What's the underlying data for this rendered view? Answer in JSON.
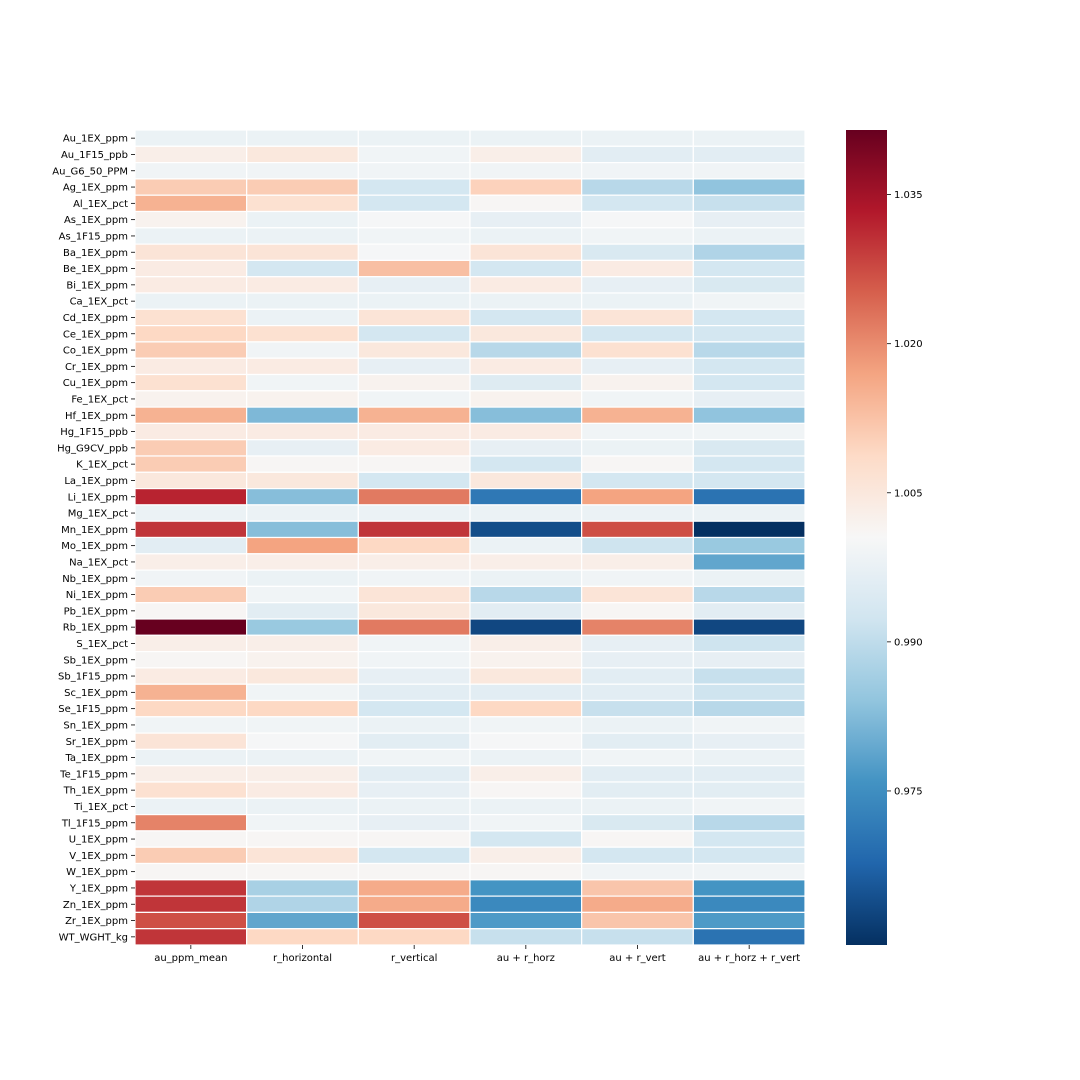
{
  "chart_data": {
    "type": "heatmap",
    "title": "",
    "xlabel": "",
    "ylabel": "",
    "colormap": "RdBu_r",
    "colors": {
      "low": "#053061",
      "mid": "#f7f7f7",
      "high": "#67001f",
      "grid_line": "#ffffff"
    },
    "vmin": 0.9595,
    "vmax": 1.0415,
    "columns": [
      "au_ppm_mean",
      "r_horizontal",
      "r_vertical",
      "au + r_horz",
      "au + r_vert",
      "au + r_horz + r_vert"
    ],
    "rows": [
      "Au_1EX_ppm",
      "Au_1F15_ppb",
      "Au_G6_50_PPM",
      "Ag_1EX_ppm",
      "Al_1EX_pct",
      "As_1EX_ppm",
      "As_1F15_ppm",
      "Ba_1EX_ppm",
      "Be_1EX_ppm",
      "Bi_1EX_ppm",
      "Ca_1EX_pct",
      "Cd_1EX_ppm",
      "Ce_1EX_ppm",
      "Co_1EX_ppm",
      "Cr_1EX_ppm",
      "Cu_1EX_ppm",
      "Fe_1EX_pct",
      "Hf_1EX_ppm",
      "Hg_1F15_ppb",
      "Hg_G9CV_ppb",
      "K_1EX_pct",
      "La_1EX_ppm",
      "Li_1EX_ppm",
      "Mg_1EX_pct",
      "Mn_1EX_ppm",
      "Mo_1EX_ppm",
      "Na_1EX_pct",
      "Nb_1EX_ppm",
      "Ni_1EX_ppm",
      "Pb_1EX_ppm",
      "Rb_1EX_ppm",
      "S_1EX_pct",
      "Sb_1EX_ppm",
      "Sb_1F15_ppm",
      "Sc_1EX_ppm",
      "Se_1F15_ppm",
      "Sn_1EX_ppm",
      "Sr_1EX_ppm",
      "Ta_1EX_ppm",
      "Te_1F15_ppm",
      "Th_1EX_ppm",
      "Ti_1EX_pct",
      "Tl_1F15_ppm",
      "U_1EX_ppm",
      "V_1EX_ppm",
      "W_1EX_ppm",
      "Y_1EX_ppm",
      "Zn_1EX_ppm",
      "Zr_1EX_ppm",
      "WT_WGHT_kg"
    ],
    "values": [
      [
        0.998,
        0.998,
        0.998,
        0.998,
        0.998,
        0.998
      ],
      [
        1.003,
        1.005,
        0.999,
        1.003,
        0.996,
        0.996
      ],
      [
        0.999,
        0.999,
        0.999,
        0.999,
        0.999,
        0.999
      ],
      [
        1.011,
        1.011,
        0.993,
        1.01,
        0.989,
        0.984
      ],
      [
        1.015,
        1.007,
        0.993,
        1.001,
        0.993,
        0.991
      ],
      [
        1.002,
        0.998,
        1.0,
        0.997,
        1.0,
        0.997
      ],
      [
        0.998,
        0.998,
        0.999,
        0.998,
        0.999,
        0.998
      ],
      [
        1.006,
        1.006,
        1.0,
        1.006,
        0.994,
        0.988
      ],
      [
        1.004,
        0.993,
        1.013,
        0.993,
        1.004,
        0.993
      ],
      [
        1.004,
        1.004,
        0.997,
        1.004,
        0.997,
        0.994
      ],
      [
        0.998,
        0.998,
        0.998,
        0.998,
        0.998,
        0.999
      ],
      [
        1.007,
        0.998,
        1.006,
        0.993,
        1.006,
        0.993
      ],
      [
        1.009,
        1.007,
        0.993,
        1.005,
        0.993,
        0.993
      ],
      [
        1.011,
        0.999,
        1.005,
        0.989,
        1.007,
        0.989
      ],
      [
        1.004,
        1.004,
        0.997,
        1.004,
        0.997,
        0.993
      ],
      [
        1.007,
        0.999,
        1.002,
        0.995,
        1.002,
        0.993
      ],
      [
        1.002,
        1.002,
        0.999,
        1.002,
        0.999,
        0.997
      ],
      [
        1.015,
        0.982,
        1.015,
        0.983,
        1.015,
        0.984
      ],
      [
        1.004,
        1.004,
        1.004,
        1.004,
        0.999,
        0.999
      ],
      [
        1.011,
        0.997,
        1.004,
        0.997,
        0.998,
        0.994
      ],
      [
        1.011,
        1.001,
        1.001,
        0.993,
        1.001,
        0.993
      ],
      [
        1.005,
        1.005,
        0.993,
        1.005,
        0.993,
        0.993
      ],
      [
        1.032,
        0.983,
        1.022,
        0.971,
        1.017,
        0.97
      ],
      [
        0.998,
        0.998,
        0.998,
        0.998,
        0.998,
        0.998
      ],
      [
        1.03,
        0.983,
        1.03,
        0.964,
        1.027,
        0.9595
      ],
      [
        0.996,
        1.017,
        1.009,
        0.998,
        0.992,
        0.985
      ],
      [
        1.003,
        1.003,
        1.003,
        1.003,
        1.003,
        0.979
      ],
      [
        0.999,
        0.998,
        0.999,
        0.998,
        0.999,
        0.998
      ],
      [
        1.011,
        0.999,
        1.006,
        0.989,
        1.006,
        0.989
      ],
      [
        1.001,
        0.996,
        1.005,
        0.996,
        1.001,
        0.996
      ],
      [
        1.0415,
        0.985,
        1.022,
        0.963,
        1.021,
        0.963
      ],
      [
        1.003,
        1.003,
        0.999,
        1.003,
        0.997,
        0.992
      ],
      [
        1.001,
        1.002,
        0.999,
        1.002,
        0.997,
        0.997
      ],
      [
        1.004,
        1.005,
        0.997,
        1.005,
        0.996,
        0.991
      ],
      [
        1.015,
        0.999,
        0.996,
        0.996,
        0.996,
        0.992
      ],
      [
        1.009,
        1.009,
        0.993,
        1.009,
        0.991,
        0.989
      ],
      [
        0.999,
        0.999,
        0.998,
        0.999,
        0.998,
        0.999
      ],
      [
        1.006,
        1.0,
        0.996,
        1.0,
        0.996,
        0.997
      ],
      [
        0.998,
        0.998,
        0.999,
        0.998,
        0.999,
        0.998
      ],
      [
        1.003,
        1.003,
        0.996,
        1.003,
        0.996,
        0.996
      ],
      [
        1.007,
        1.004,
        0.997,
        1.001,
        0.996,
        0.996
      ],
      [
        0.998,
        0.998,
        0.998,
        0.998,
        0.998,
        0.999
      ],
      [
        1.021,
        0.999,
        0.997,
        0.999,
        0.994,
        0.989
      ],
      [
        1.001,
        1.001,
        1.001,
        0.993,
        1.001,
        0.993
      ],
      [
        1.011,
        1.006,
        0.993,
        1.003,
        0.993,
        0.993
      ],
      [
        1.001,
        1.001,
        1.001,
        1.001,
        0.999,
        0.999
      ],
      [
        1.03,
        0.987,
        1.016,
        0.976,
        1.012,
        0.976
      ],
      [
        1.03,
        0.988,
        1.016,
        0.974,
        1.016,
        0.974
      ],
      [
        1.027,
        0.979,
        1.027,
        0.977,
        1.012,
        0.977
      ],
      [
        1.03,
        1.009,
        1.009,
        0.991,
        0.991,
        0.97
      ]
    ],
    "colorbar": {
      "ticks": [
        0.975,
        0.99,
        1.005,
        1.02,
        1.035
      ],
      "tick_labels": [
        "0.975",
        "0.990",
        "1.005",
        "1.020",
        "1.035"
      ]
    }
  }
}
